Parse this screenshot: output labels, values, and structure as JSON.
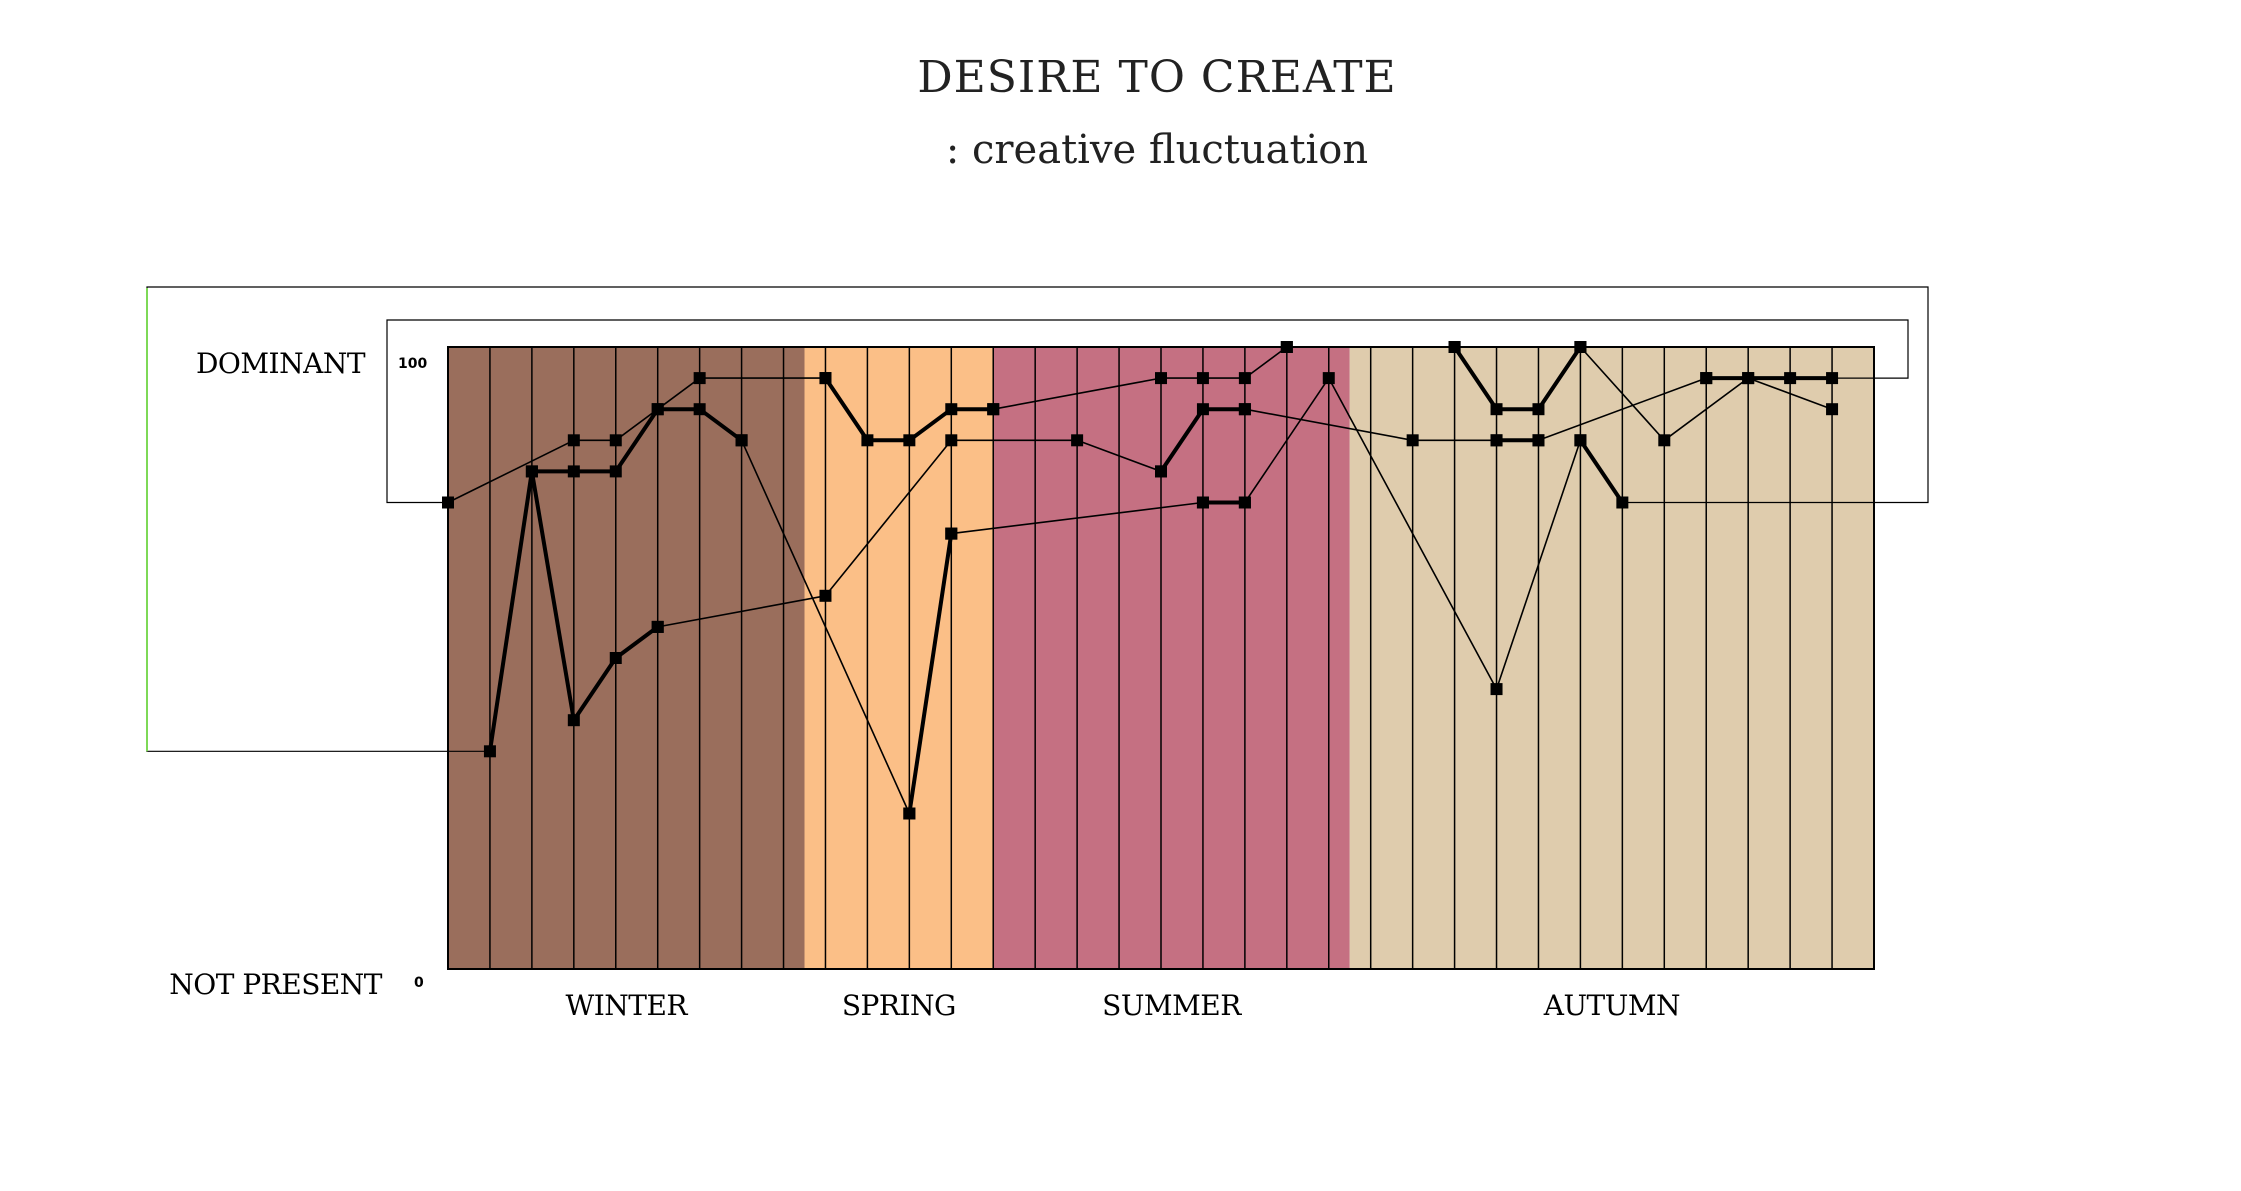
{
  "chart_data": {
    "type": "line",
    "title": "DESIRE TO CREATE",
    "subtitle": ": creative fluctuation",
    "y_axis": {
      "top_label": "DOMINANT",
      "bottom_label": "NOT PRESENT",
      "top_tick": "100",
      "bottom_tick": "0",
      "ylim": [
        0,
        100
      ]
    },
    "x_count": 34,
    "seasons": [
      {
        "name": "WINTER",
        "start": 0,
        "end": 8.5,
        "color": "#9a6e5c"
      },
      {
        "name": "SPRING",
        "start": 8.5,
        "end": 13.0,
        "color": "#fbbf87"
      },
      {
        "name": "SUMMER",
        "start": 13.0,
        "end": 21.5,
        "color": "#c57082"
      },
      {
        "name": "AUTUMN",
        "start": 21.5,
        "end": 34.0,
        "color": "#dfccad"
      }
    ],
    "grid": true,
    "series": [
      {
        "weight": "bold",
        "points": [
          [
            1,
            35
          ],
          [
            2,
            80
          ],
          [
            3,
            80
          ],
          [
            4,
            80
          ],
          [
            5,
            90
          ],
          [
            6,
            90
          ],
          [
            7,
            85
          ]
        ]
      },
      {
        "weight": "bold",
        "points": [
          [
            9,
            95
          ],
          [
            10,
            85
          ],
          [
            11,
            85
          ],
          [
            12,
            90
          ],
          [
            13,
            90
          ]
        ]
      },
      {
        "weight": "bold",
        "points": [
          [
            17,
            80
          ],
          [
            18,
            90
          ],
          [
            19,
            90
          ]
        ]
      },
      {
        "weight": "bold",
        "points": [
          [
            20,
            100
          ]
        ]
      },
      {
        "weight": "bold",
        "points": [
          [
            24,
            100
          ],
          [
            25,
            90
          ],
          [
            26,
            90
          ],
          [
            27,
            100
          ]
        ]
      },
      {
        "weight": "bold",
        "points": [
          [
            25,
            85
          ],
          [
            26,
            85
          ]
        ]
      },
      {
        "weight": "bold",
        "points": [
          [
            27,
            85
          ],
          [
            28,
            75
          ]
        ]
      },
      {
        "weight": "bold",
        "points": [
          [
            30,
            95
          ],
          [
            31,
            95
          ],
          [
            32,
            95
          ],
          [
            33,
            95
          ]
        ]
      },
      {
        "weight": "bold",
        "points": [
          [
            2,
            80
          ],
          [
            3,
            40
          ],
          [
            4,
            50
          ],
          [
            5,
            55
          ]
        ]
      },
      {
        "weight": "bold",
        "points": [
          [
            11,
            25
          ],
          [
            12,
            70
          ]
        ]
      },
      {
        "weight": "bold",
        "points": [
          [
            18,
            75
          ],
          [
            19,
            75
          ]
        ]
      },
      {
        "weight": "thin",
        "points": [
          [
            0,
            75
          ],
          [
            3,
            85
          ],
          [
            4,
            85
          ],
          [
            5,
            90
          ],
          [
            6,
            95
          ],
          [
            9,
            95
          ]
        ]
      },
      {
        "weight": "thin",
        "points": [
          [
            5,
            55
          ],
          [
            9,
            60
          ],
          [
            12,
            85
          ],
          [
            15,
            85
          ],
          [
            17,
            80
          ]
        ]
      },
      {
        "weight": "thin",
        "points": [
          [
            7,
            85
          ],
          [
            11,
            25
          ]
        ]
      },
      {
        "weight": "thin",
        "points": [
          [
            13,
            90
          ],
          [
            17,
            95
          ],
          [
            18,
            95
          ],
          [
            19,
            95
          ],
          [
            20,
            100
          ],
          [
            24,
            100
          ]
        ]
      },
      {
        "weight": "thin",
        "points": [
          [
            12,
            70
          ],
          [
            18,
            75
          ]
        ]
      },
      {
        "weight": "thin",
        "points": [
          [
            19,
            75
          ],
          [
            21,
            95
          ],
          [
            25,
            45
          ],
          [
            27,
            85
          ]
        ]
      },
      {
        "weight": "thin",
        "points": [
          [
            19,
            90
          ],
          [
            23,
            85
          ],
          [
            25,
            85
          ]
        ]
      },
      {
        "weight": "thin",
        "points": [
          [
            26,
            85
          ],
          [
            30,
            95
          ]
        ]
      },
      {
        "weight": "thin",
        "points": [
          [
            27,
            100
          ],
          [
            29,
            85
          ],
          [
            31,
            95
          ],
          [
            33,
            90
          ]
        ]
      }
    ]
  }
}
